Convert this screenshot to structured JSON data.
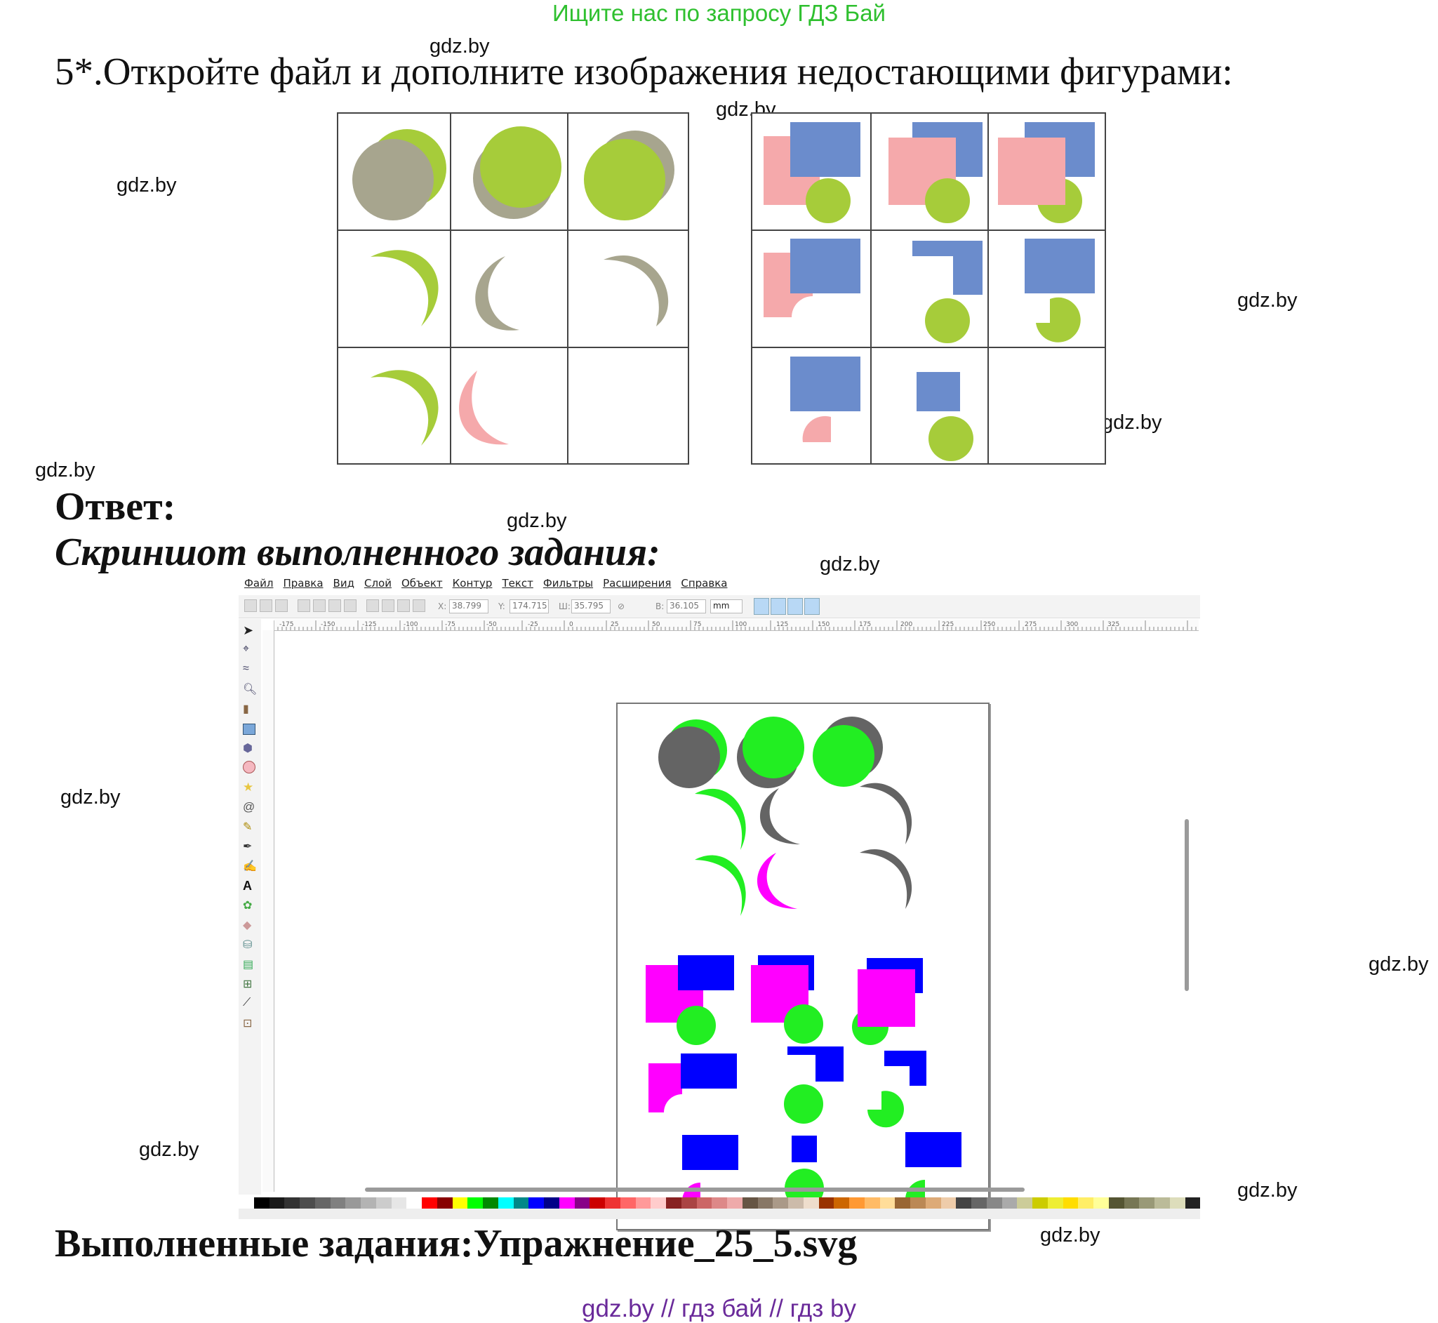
{
  "banner": "Ищите нас по запросу ГДЗ Бай",
  "task": "5*.Откройте файл и дополните изображения недостающими фигурами:",
  "answer_heading": "Ответ:",
  "screenshot_heading": "Скриншот выполненного задания:",
  "completed_file": "Выполненные задания:Упражнение_25_5.svg",
  "footer": "gdz.by  //  гдз бай  //  гдз by",
  "watermark": "gdz.by",
  "colors": {
    "olive_green": "#a6cc3a",
    "grey_khaki": "#a7a58e",
    "pink": "#f5a9ab",
    "steel_blue": "#6b8ccc",
    "lime": "#22ee22",
    "dark_grey": "#646464",
    "magenta": "#ff00ff",
    "blue": "#0000ff"
  },
  "inkscape": {
    "menu": [
      "Файл",
      "Правка",
      "Вид",
      "Слой",
      "Объект",
      "Контур",
      "Текст",
      "Фильтры",
      "Расширения",
      "Справка"
    ],
    "fields": {
      "x_label": "X:",
      "x_value": "38.799",
      "y_label": "Y:",
      "y_value": "174.715",
      "w_label": "Ш:",
      "w_value": "35.795",
      "h_label": "В:",
      "h_value": "36.105",
      "unit": "mm"
    },
    "ruler_labels": [
      "-175",
      "-150",
      "-125",
      "-100",
      "-75",
      "-50",
      "-25",
      "0",
      "25",
      "50",
      "75",
      "100",
      "125",
      "150",
      "175",
      "200",
      "225",
      "250",
      "275",
      "300",
      "325"
    ]
  }
}
